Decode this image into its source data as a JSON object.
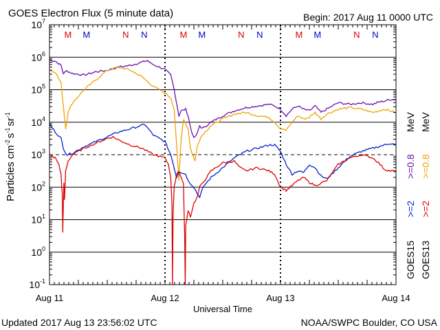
{
  "chart_data": {
    "type": "line",
    "title": "GOES Electron Flux (5 minute data)",
    "begin_label": "Begin: 2017 Aug 11 0000 UTC",
    "xlabel": "Universal Time",
    "ylabel_parts": {
      "base": "Particles cm",
      "exp1": "-2",
      "s": "s",
      "exp2": "-1",
      "sr": "sr",
      "exp3": "-1"
    },
    "x_ticks": [
      {
        "label": "Aug 11",
        "day": 0
      },
      {
        "label": "Aug 12",
        "day": 1
      },
      {
        "label": "Aug 13",
        "day": 2
      },
      {
        "label": "Aug 14",
        "day": 3
      }
    ],
    "y_scale": "log",
    "ylim_exp": [
      -1,
      7
    ],
    "y_ticks": [
      {
        "base": "10",
        "exp": "7",
        "e": 7
      },
      {
        "base": "10",
        "exp": "6",
        "e": 6
      },
      {
        "base": "10",
        "exp": "5",
        "e": 5
      },
      {
        "base": "10",
        "exp": "4",
        "e": 4
      },
      {
        "base": "10",
        "exp": "3",
        "e": 3
      },
      {
        "base": "10",
        "exp": "2",
        "e": 2
      },
      {
        "base": "10",
        "exp": "1",
        "e": 1
      },
      {
        "base": "10",
        "exp": "0",
        "e": 0
      },
      {
        "base": "10",
        "exp": "-1",
        "e": -1
      }
    ],
    "alert_threshold_exp": 3,
    "mn_markers": [
      {
        "label": "M",
        "day": 0.16,
        "color": "#dd0000"
      },
      {
        "label": "M",
        "day": 0.32,
        "color": "#0000cc"
      },
      {
        "label": "N",
        "day": 0.66,
        "color": "#dd0000"
      },
      {
        "label": "N",
        "day": 0.82,
        "color": "#0000cc"
      },
      {
        "label": "M",
        "day": 1.16,
        "color": "#dd0000"
      },
      {
        "label": "M",
        "day": 1.32,
        "color": "#0000cc"
      },
      {
        "label": "N",
        "day": 1.66,
        "color": "#dd0000"
      },
      {
        "label": "N",
        "day": 1.82,
        "color": "#0000cc"
      },
      {
        "label": "M",
        "day": 2.16,
        "color": "#dd0000"
      },
      {
        "label": "M",
        "day": 2.32,
        "color": "#0000cc"
      },
      {
        "label": "N",
        "day": 2.66,
        "color": "#dd0000"
      },
      {
        "label": "N",
        "day": 2.82,
        "color": "#0000cc"
      }
    ],
    "legend": {
      "goes15": "GOES15",
      "goes13": "GOES13",
      "g15_2": ">=2",
      "g13_2": ">=2",
      "g15_08": ">=0.8",
      "g13_08": ">=0.8",
      "mev1": "MeV",
      "mev2": "MeV"
    },
    "series": [
      {
        "name": "GOES15 >=0.8 MeV",
        "color": "#6a0dad",
        "points": [
          [
            0,
            5.92
          ],
          [
            0.05,
            5.88
          ],
          [
            0.1,
            5.75
          ],
          [
            0.12,
            5.5
          ],
          [
            0.15,
            5.58
          ],
          [
            0.2,
            5.5
          ],
          [
            0.3,
            5.45
          ],
          [
            0.4,
            5.55
          ],
          [
            0.5,
            5.6
          ],
          [
            0.6,
            5.7
          ],
          [
            0.7,
            5.75
          ],
          [
            0.75,
            5.8
          ],
          [
            0.8,
            5.85
          ],
          [
            0.85,
            5.9
          ],
          [
            0.88,
            5.8
          ],
          [
            0.95,
            5.7
          ],
          [
            1.0,
            5.62
          ],
          [
            1.05,
            5.45
          ],
          [
            1.08,
            5.0
          ],
          [
            1.1,
            4.6
          ],
          [
            1.12,
            4.2
          ],
          [
            1.14,
            4.35
          ],
          [
            1.18,
            4.4
          ],
          [
            1.2,
            4.2
          ],
          [
            1.22,
            3.85
          ],
          [
            1.25,
            3.5
          ],
          [
            1.28,
            3.65
          ],
          [
            1.3,
            3.9
          ],
          [
            1.32,
            3.8
          ],
          [
            1.4,
            4.0
          ],
          [
            1.5,
            4.2
          ],
          [
            1.6,
            4.35
          ],
          [
            1.7,
            4.45
          ],
          [
            1.8,
            4.5
          ],
          [
            1.9,
            4.55
          ],
          [
            1.95,
            4.5
          ],
          [
            2.0,
            4.4
          ],
          [
            2.05,
            4.2
          ],
          [
            2.1,
            4.4
          ],
          [
            2.15,
            4.5
          ],
          [
            2.2,
            4.4
          ],
          [
            2.25,
            4.35
          ],
          [
            2.3,
            4.5
          ],
          [
            2.35,
            4.3
          ],
          [
            2.4,
            4.4
          ],
          [
            2.5,
            4.6
          ],
          [
            2.6,
            4.55
          ],
          [
            2.7,
            4.6
          ],
          [
            2.8,
            4.55
          ],
          [
            2.85,
            4.62
          ],
          [
            2.9,
            4.65
          ],
          [
            2.95,
            4.7
          ],
          [
            3.0,
            4.7
          ]
        ]
      },
      {
        "name": "GOES13 >=0.8 MeV",
        "color": "#f0a000",
        "points": [
          [
            0,
            5.6
          ],
          [
            0.05,
            5.55
          ],
          [
            0.1,
            5.2
          ],
          [
            0.12,
            4.5
          ],
          [
            0.14,
            3.8
          ],
          [
            0.16,
            4.3
          ],
          [
            0.2,
            4.6
          ],
          [
            0.3,
            5.0
          ],
          [
            0.4,
            5.3
          ],
          [
            0.5,
            5.6
          ],
          [
            0.6,
            5.7
          ],
          [
            0.7,
            5.6
          ],
          [
            0.8,
            5.4
          ],
          [
            0.9,
            5.1
          ],
          [
            1.0,
            4.9
          ],
          [
            1.05,
            4.75
          ],
          [
            1.08,
            4.4
          ],
          [
            1.1,
            3.3
          ],
          [
            1.12,
            2.2
          ],
          [
            1.14,
            3.5
          ],
          [
            1.16,
            4.1
          ],
          [
            1.2,
            3.8
          ],
          [
            1.22,
            3.2
          ],
          [
            1.26,
            2.8
          ],
          [
            1.28,
            3.3
          ],
          [
            1.32,
            3.6
          ],
          [
            1.4,
            3.9
          ],
          [
            1.5,
            4.1
          ],
          [
            1.6,
            4.25
          ],
          [
            1.7,
            4.3
          ],
          [
            1.8,
            4.2
          ],
          [
            1.9,
            4.15
          ],
          [
            1.95,
            4.0
          ],
          [
            2.0,
            3.8
          ],
          [
            2.05,
            3.75
          ],
          [
            2.1,
            4.0
          ],
          [
            2.15,
            4.2
          ],
          [
            2.2,
            4.1
          ],
          [
            2.25,
            4.15
          ],
          [
            2.3,
            4.3
          ],
          [
            2.35,
            4.1
          ],
          [
            2.4,
            4.25
          ],
          [
            2.5,
            4.4
          ],
          [
            2.6,
            4.45
          ],
          [
            2.7,
            4.4
          ],
          [
            2.8,
            4.3
          ],
          [
            2.85,
            4.35
          ],
          [
            2.9,
            4.4
          ],
          [
            2.95,
            4.35
          ],
          [
            3.0,
            4.3
          ]
        ]
      },
      {
        "name": "GOES15 >=2 MeV",
        "color": "#0022cc",
        "points": [
          [
            0,
            3.95
          ],
          [
            0.05,
            3.7
          ],
          [
            0.1,
            3.5
          ],
          [
            0.12,
            3.2
          ],
          [
            0.15,
            3.0
          ],
          [
            0.2,
            3.05
          ],
          [
            0.3,
            3.25
          ],
          [
            0.4,
            3.4
          ],
          [
            0.5,
            3.55
          ],
          [
            0.6,
            3.7
          ],
          [
            0.7,
            3.8
          ],
          [
            0.8,
            3.9
          ],
          [
            0.82,
            3.95
          ],
          [
            0.9,
            3.6
          ],
          [
            0.95,
            3.5
          ],
          [
            1.0,
            3.4
          ],
          [
            1.05,
            3.0
          ],
          [
            1.08,
            2.6
          ],
          [
            1.1,
            2.3
          ],
          [
            1.12,
            2.5
          ],
          [
            1.14,
            2.45
          ],
          [
            1.18,
            2.4
          ],
          [
            1.2,
            2.2
          ],
          [
            1.25,
            2.0
          ],
          [
            1.28,
            1.8
          ],
          [
            1.3,
            1.7
          ],
          [
            1.32,
            1.9
          ],
          [
            1.35,
            2.1
          ],
          [
            1.4,
            2.3
          ],
          [
            1.5,
            2.6
          ],
          [
            1.6,
            2.9
          ],
          [
            1.7,
            3.1
          ],
          [
            1.8,
            3.2
          ],
          [
            1.9,
            3.3
          ],
          [
            1.95,
            3.3
          ],
          [
            2.0,
            3.1
          ],
          [
            2.05,
            2.7
          ],
          [
            2.1,
            2.4
          ],
          [
            2.15,
            2.5
          ],
          [
            2.2,
            2.45
          ],
          [
            2.25,
            2.7
          ],
          [
            2.3,
            2.6
          ],
          [
            2.35,
            2.35
          ],
          [
            2.4,
            2.25
          ],
          [
            2.5,
            2.6
          ],
          [
            2.6,
            2.95
          ],
          [
            2.7,
            3.1
          ],
          [
            2.8,
            3.2
          ],
          [
            2.9,
            3.3
          ],
          [
            2.95,
            3.35
          ],
          [
            3.0,
            3.3
          ]
        ]
      },
      {
        "name": "GOES13 >=2 MeV",
        "color": "#dd0000",
        "points": [
          [
            0,
            3.0
          ],
          [
            0.05,
            2.9
          ],
          [
            0.08,
            2.7
          ],
          [
            0.1,
            2.4
          ],
          [
            0.11,
            1.8
          ],
          [
            0.115,
            0.6
          ],
          [
            0.12,
            1.5
          ],
          [
            0.125,
            2.1
          ],
          [
            0.13,
            1.6
          ],
          [
            0.14,
            2.5
          ],
          [
            0.16,
            2.8
          ],
          [
            0.2,
            3.0
          ],
          [
            0.3,
            3.2
          ],
          [
            0.4,
            3.35
          ],
          [
            0.5,
            3.5
          ],
          [
            0.55,
            3.55
          ],
          [
            0.6,
            3.45
          ],
          [
            0.7,
            3.3
          ],
          [
            0.8,
            3.2
          ],
          [
            0.9,
            3.0
          ],
          [
            1.0,
            2.9
          ],
          [
            1.03,
            2.7
          ],
          [
            1.05,
            2.3
          ],
          [
            1.06,
            1.5
          ],
          [
            1.065,
            -1.0
          ],
          [
            1.07,
            1.2
          ],
          [
            1.08,
            2.0
          ],
          [
            1.1,
            2.4
          ],
          [
            1.12,
            2.5
          ],
          [
            1.14,
            2.3
          ],
          [
            1.16,
            2.1
          ],
          [
            1.17,
            0.5
          ],
          [
            1.175,
            -1.0
          ],
          [
            1.18,
            0.8
          ],
          [
            1.2,
            1.3
          ],
          [
            1.22,
            1.1
          ],
          [
            1.25,
            1.5
          ],
          [
            1.28,
            1.7
          ],
          [
            1.3,
            2.0
          ],
          [
            1.4,
            2.5
          ],
          [
            1.5,
            2.75
          ],
          [
            1.6,
            2.8
          ],
          [
            1.65,
            2.6
          ],
          [
            1.7,
            2.5
          ],
          [
            1.8,
            2.6
          ],
          [
            1.9,
            2.5
          ],
          [
            1.95,
            2.4
          ],
          [
            2.0,
            2.0
          ],
          [
            2.05,
            1.9
          ],
          [
            2.1,
            2.05
          ],
          [
            2.15,
            2.2
          ],
          [
            2.2,
            2.3
          ],
          [
            2.25,
            2.15
          ],
          [
            2.3,
            2.05
          ],
          [
            2.4,
            2.2
          ],
          [
            2.5,
            2.7
          ],
          [
            2.6,
            2.9
          ],
          [
            2.7,
            3.0
          ],
          [
            2.8,
            2.9
          ],
          [
            2.85,
            2.75
          ],
          [
            2.9,
            2.55
          ],
          [
            2.95,
            2.5
          ],
          [
            3.0,
            2.5
          ]
        ]
      }
    ]
  },
  "footer": {
    "updated": "Updated 2017 Aug 13 23:56:02 UTC",
    "credit": "NOAA/SWPC Boulder, CO USA"
  }
}
